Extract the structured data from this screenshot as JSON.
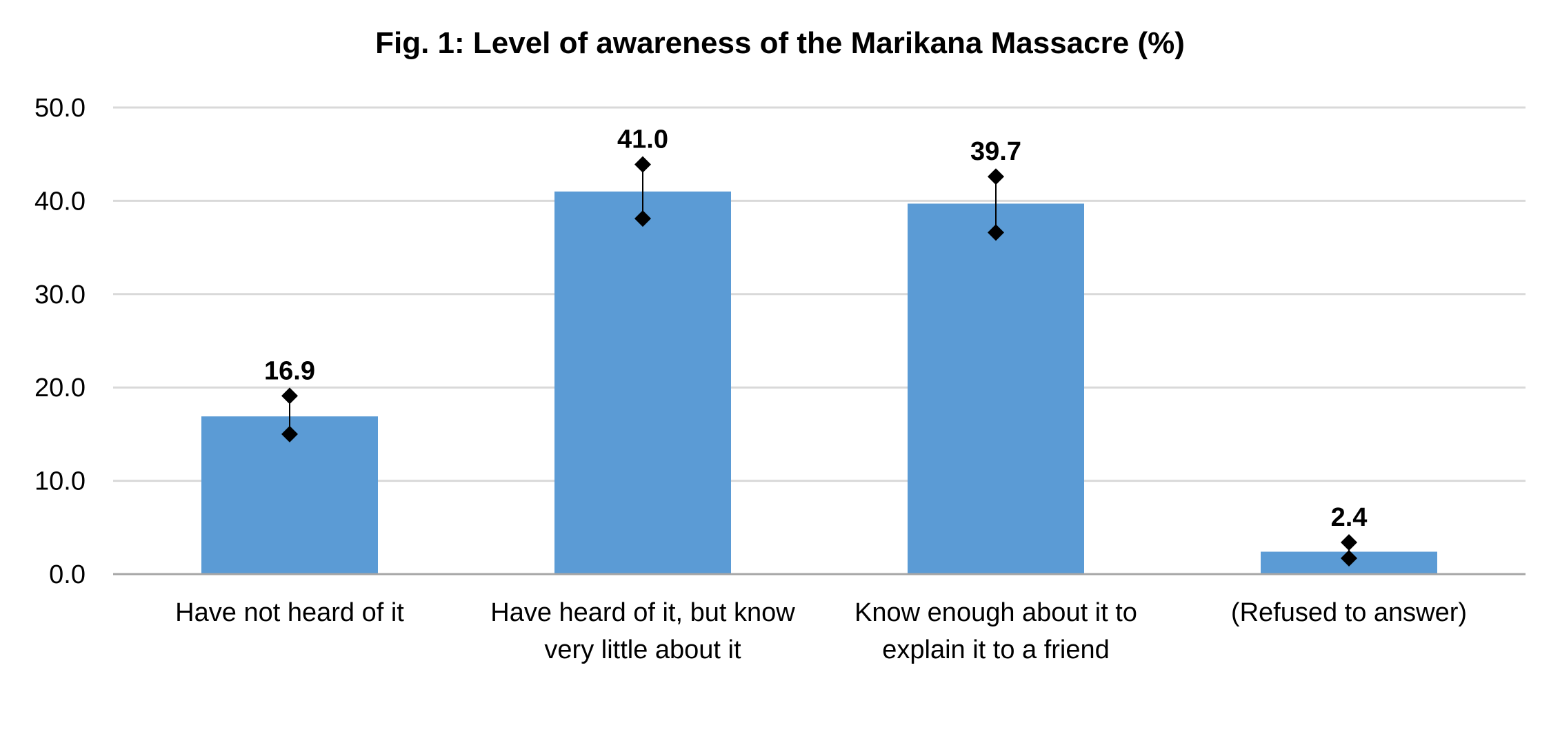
{
  "chart_data": {
    "type": "bar",
    "title": "Fig. 1: Level of awareness of the Marikana Massacre (%)",
    "xlabel": "",
    "ylabel": "",
    "categories": [
      [
        "Have not heard of it"
      ],
      [
        "Have heard of it, but know",
        "very little about it"
      ],
      [
        "Know enough about it to",
        "explain it to a friend"
      ],
      [
        "(Refused to answer)"
      ]
    ],
    "values": [
      16.9,
      41.0,
      39.7,
      2.4
    ],
    "value_labels": [
      "16.9",
      "41.0",
      "39.7",
      "2.4"
    ],
    "error_bars": [
      {
        "low": 15.0,
        "high": 19.1
      },
      {
        "low": 38.1,
        "high": 43.9
      },
      {
        "low": 36.6,
        "high": 42.6
      },
      {
        "low": 1.7,
        "high": 3.4
      }
    ],
    "ylim": [
      0,
      50
    ],
    "yticks": [
      "0.0",
      "10.0",
      "20.0",
      "30.0",
      "40.0",
      "50.0"
    ],
    "grid": true,
    "legend": "none",
    "colors": {
      "bar": "#5b9bd5",
      "grid": "#d9d9d9",
      "axis": "#a6a6a6",
      "error_marker": "#000000",
      "text": "#000000"
    }
  }
}
